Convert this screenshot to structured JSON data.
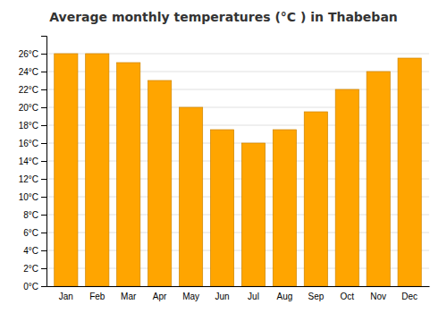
{
  "chart_data": {
    "type": "bar",
    "title": "Average monthly temperatures (°C ) in Thabeban",
    "categories": [
      "Jan",
      "Feb",
      "Mar",
      "Apr",
      "May",
      "Jun",
      "Jul",
      "Aug",
      "Sep",
      "Oct",
      "Nov",
      "Dec"
    ],
    "values": [
      26.0,
      26.0,
      25.0,
      23.0,
      20.0,
      17.5,
      16.0,
      17.5,
      19.5,
      22.0,
      24.0,
      25.5
    ],
    "color": "#FFA500",
    "ylim": [
      0,
      28
    ],
    "yticks": [
      {
        "value": 0,
        "label": "0°C"
      },
      {
        "value": 2,
        "label": "2°C"
      },
      {
        "value": 4,
        "label": "4°C"
      },
      {
        "value": 6,
        "label": "6°C"
      },
      {
        "value": 8,
        "label": "8°C"
      },
      {
        "value": 10,
        "label": "10°C"
      },
      {
        "value": 12,
        "label": "12°C"
      },
      {
        "value": 14,
        "label": "14°C"
      },
      {
        "value": 16,
        "label": "16°C"
      },
      {
        "value": 18,
        "label": "18°C"
      },
      {
        "value": 20,
        "label": "20°C"
      },
      {
        "value": 22,
        "label": "22°C"
      },
      {
        "value": 24,
        "label": "24°C"
      },
      {
        "value": 26,
        "label": "26°C"
      }
    ],
    "grid": true
  }
}
